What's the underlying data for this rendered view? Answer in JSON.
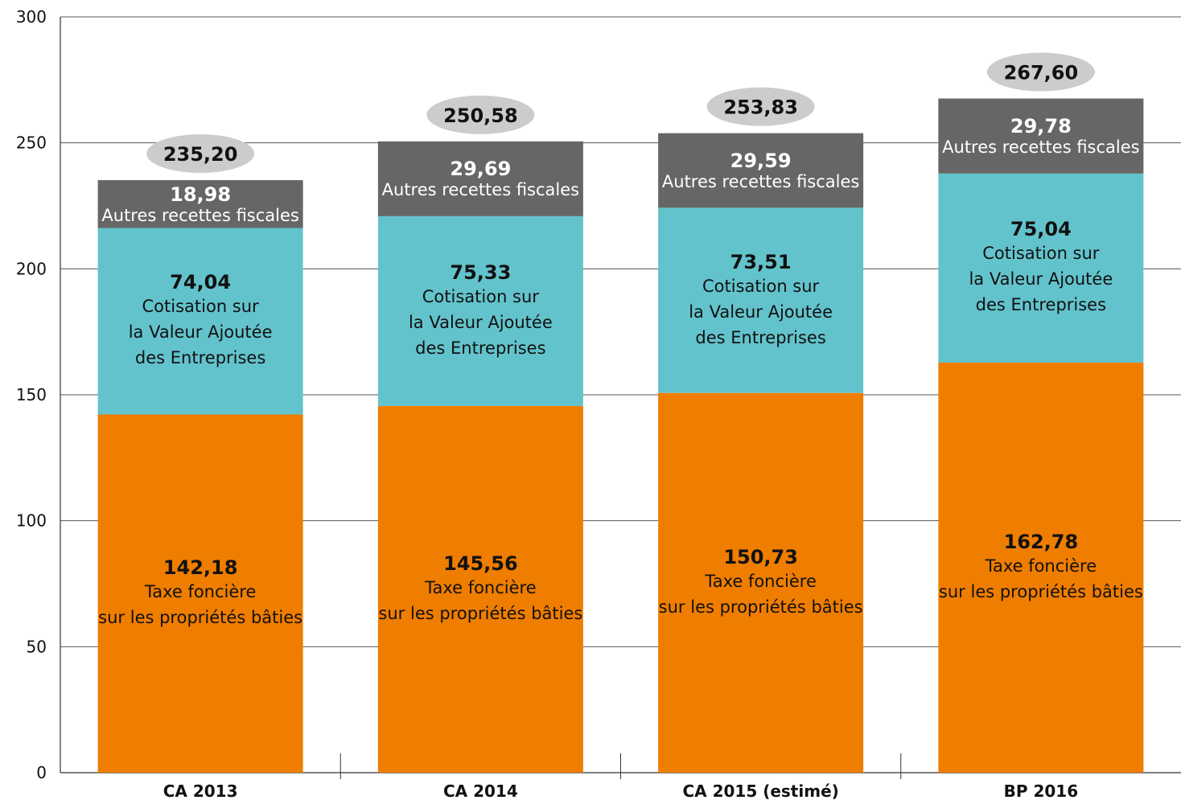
{
  "chart_data": {
    "type": "stacked_bar",
    "categories": [
      "CA 2013",
      "CA 2014",
      "CA 2015 (estimé)",
      "BP 2016"
    ],
    "series": [
      {
        "name": "Taxe foncière\nsur les propriétés bâties",
        "color": "#ef7d00",
        "values": [
          142.18,
          145.56,
          150.73,
          162.78
        ],
        "value_labels": [
          "142,18",
          "145,56",
          "150,73",
          "162,78"
        ]
      },
      {
        "name": "Cotisation sur\nla Valeur Ajoutée\ndes Entreprises",
        "color": "#63c3cc",
        "values": [
          74.04,
          75.33,
          73.51,
          75.04
        ],
        "value_labels": [
          "74,04",
          "75,33",
          "73,51",
          "75,04"
        ]
      },
      {
        "name": "Autres recettes fiscales",
        "color": "#666666",
        "values": [
          18.98,
          29.69,
          29.59,
          29.78
        ],
        "value_labels": [
          "18,98",
          "29,69",
          "29,59",
          "29,78"
        ]
      }
    ],
    "totals": [
      235.2,
      250.58,
      253.83,
      267.6
    ],
    "total_labels": [
      "235,20",
      "250,58",
      "253,83",
      "267,60"
    ],
    "total_color": "#cccccc",
    "ylim": [
      0,
      300
    ],
    "yticks": [
      0,
      50,
      100,
      150,
      200,
      250,
      300
    ],
    "grid": true
  }
}
